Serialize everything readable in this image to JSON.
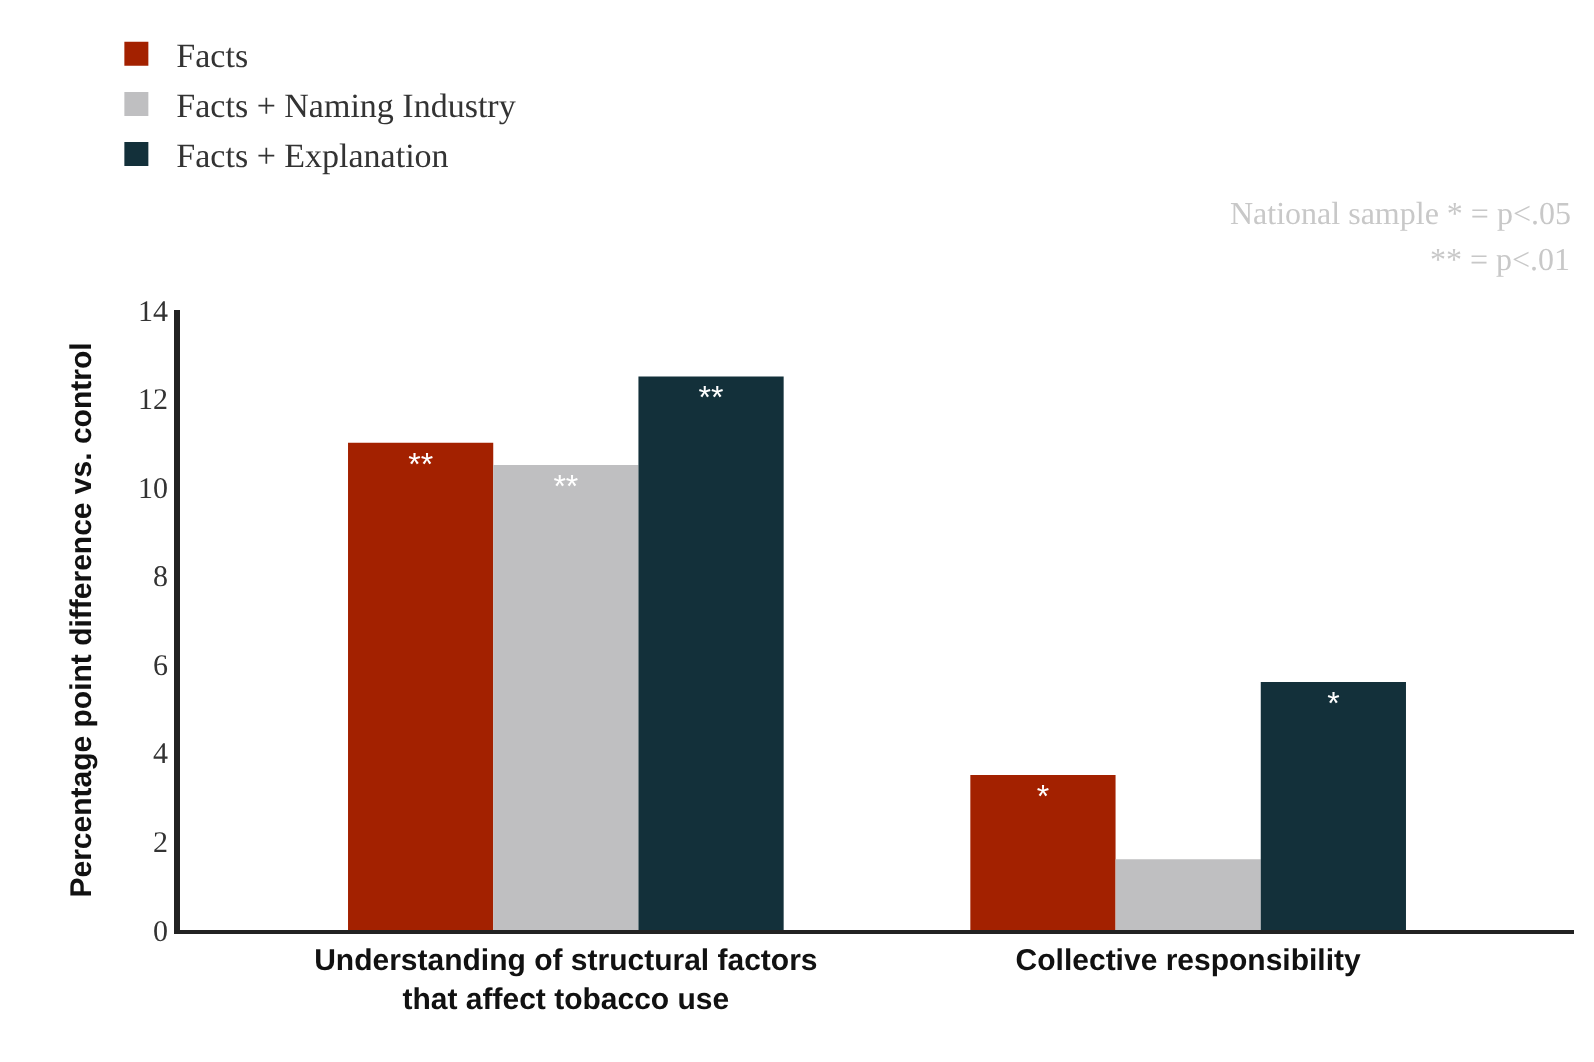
{
  "chart_data": {
    "type": "bar",
    "ylabel": "Percentage point difference vs. control",
    "categories": [
      "Understanding of structural factors that affect tobacco use",
      "Collective responsibility"
    ],
    "series": [
      {
        "name": "Facts",
        "color": "#a32100",
        "values": [
          11,
          3.5
        ],
        "value_labels": [
          "**",
          "*"
        ]
      },
      {
        "name": "Facts + Naming Industry",
        "color": "#bfbfc1",
        "values": [
          10.5,
          1.6
        ],
        "value_labels": [
          "**",
          null
        ]
      },
      {
        "name": "Facts + Explanation",
        "color": "#13303a",
        "values": [
          12.5,
          5.6
        ],
        "value_labels": [
          "**",
          "*"
        ]
      }
    ],
    "ylim": [
      0,
      14
    ],
    "yticks": [
      0,
      2,
      4,
      6,
      8,
      10,
      12,
      14
    ],
    "legend": "top left",
    "annotations": [
      "National sample * = p<.05",
      "** = p<.01"
    ]
  }
}
